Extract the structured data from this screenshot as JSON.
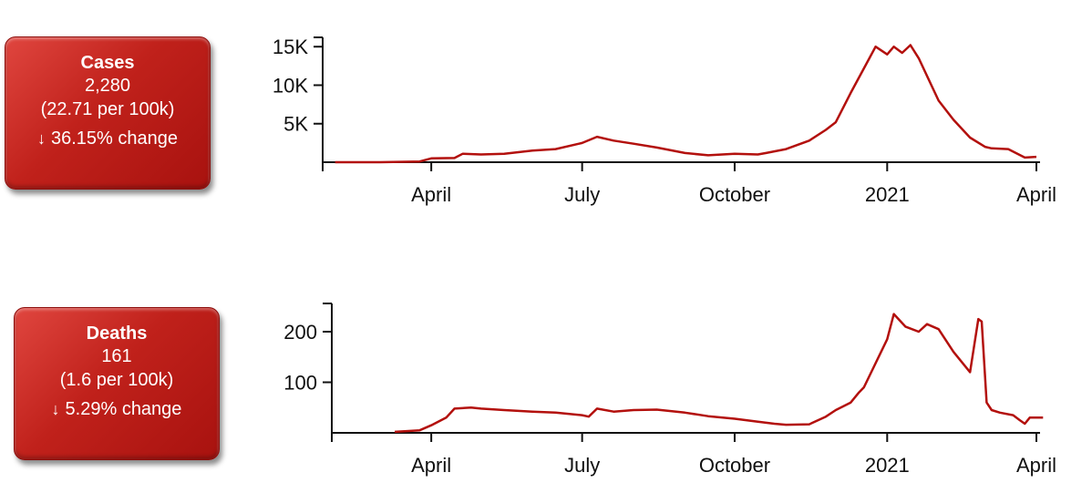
{
  "cards": {
    "cases": {
      "title": "Cases",
      "value": "2,280",
      "rate": "(22.71 per 100k)",
      "change": "36.15% change",
      "arrow": "↓"
    },
    "deaths": {
      "title": "Deaths",
      "value": "161",
      "rate": "(1.6 per 100k)",
      "change": "5.29% change",
      "arrow": "↓"
    }
  },
  "colors": {
    "line": "#b3100d",
    "card": "#c0211b"
  },
  "chart_data": [
    {
      "type": "line",
      "title": "",
      "xlabel": "",
      "ylabel": "",
      "x_tick_labels": [
        "April",
        "July",
        "October",
        "2021",
        "April"
      ],
      "x_ticks": [
        "2020-04-01",
        "2020-07-01",
        "2020-10-01",
        "2021-01-01",
        "2021-04-01"
      ],
      "xlim": [
        "2020-02-01",
        "2021-04-01"
      ],
      "y_ticks": [
        5000,
        10000,
        15000
      ],
      "y_tick_labels": [
        "5K",
        "10K",
        "15K"
      ],
      "ylim": [
        0,
        15500
      ],
      "grid": false,
      "series": [
        {
          "name": "",
          "x": [
            "2020-02-03",
            "2020-03-01",
            "2020-03-25",
            "2020-04-01",
            "2020-04-15",
            "2020-04-20",
            "2020-05-01",
            "2020-05-15",
            "2020-06-01",
            "2020-06-15",
            "2020-07-01",
            "2020-07-10",
            "2020-07-20",
            "2020-08-01",
            "2020-08-15",
            "2020-09-01",
            "2020-09-15",
            "2020-10-01",
            "2020-10-15",
            "2020-10-20",
            "2020-11-01",
            "2020-11-15",
            "2020-11-25",
            "2020-12-01",
            "2020-12-10",
            "2020-12-15",
            "2020-12-20",
            "2020-12-25",
            "2021-01-01",
            "2021-01-05",
            "2021-01-10",
            "2021-01-15",
            "2021-01-20",
            "2021-02-01",
            "2021-02-10",
            "2021-02-20",
            "2021-03-01",
            "2021-03-05",
            "2021-03-15",
            "2021-03-25",
            "2021-04-01"
          ],
          "y": [
            0,
            0,
            100,
            500,
            550,
            1100,
            1000,
            1100,
            1500,
            1700,
            2500,
            3300,
            2800,
            2400,
            1900,
            1200,
            900,
            1100,
            1000,
            1200,
            1700,
            2800,
            4200,
            5200,
            9000,
            11000,
            13000,
            15000,
            14000,
            15000,
            14200,
            15200,
            13500,
            8000,
            5500,
            3200,
            2000,
            1800,
            1700,
            600,
            700
          ]
        }
      ]
    },
    {
      "type": "line",
      "title": "",
      "xlabel": "",
      "ylabel": "",
      "x_tick_labels": [
        "April",
        "July",
        "October",
        "2021",
        "April"
      ],
      "x_ticks": [
        "2020-04-01",
        "2020-07-01",
        "2020-10-01",
        "2021-01-01",
        "2021-04-01"
      ],
      "xlim": [
        "2020-02-01",
        "2021-04-01"
      ],
      "y_ticks": [
        100,
        200
      ],
      "y_tick_labels": [
        "100",
        "200"
      ],
      "ylim": [
        0,
        245
      ],
      "grid": false,
      "series": [
        {
          "name": "",
          "x": [
            "2020-03-10",
            "2020-03-25",
            "2020-04-01",
            "2020-04-10",
            "2020-04-15",
            "2020-04-25",
            "2020-05-01",
            "2020-05-15",
            "2020-06-01",
            "2020-06-15",
            "2020-07-01",
            "2020-07-05",
            "2020-07-10",
            "2020-07-20",
            "2020-08-01",
            "2020-08-15",
            "2020-09-01",
            "2020-09-15",
            "2020-10-01",
            "2020-10-15",
            "2020-10-25",
            "2020-11-01",
            "2020-11-15",
            "2020-11-25",
            "2020-12-01",
            "2020-12-10",
            "2020-12-15",
            "2020-12-18",
            "2021-01-01",
            "2021-01-05",
            "2021-01-12",
            "2021-01-20",
            "2021-01-25",
            "2021-02-01",
            "2021-02-10",
            "2021-02-20",
            "2021-02-25",
            "2021-02-27",
            "2021-03-02",
            "2021-03-05",
            "2021-03-10",
            "2021-03-18",
            "2021-03-22",
            "2021-03-25",
            "2021-03-28",
            "2021-04-05"
          ],
          "y": [
            2,
            5,
            15,
            30,
            48,
            50,
            48,
            45,
            42,
            40,
            35,
            32,
            48,
            42,
            45,
            46,
            40,
            33,
            28,
            22,
            18,
            16,
            17,
            32,
            45,
            60,
            80,
            90,
            185,
            235,
            210,
            200,
            215,
            205,
            160,
            120,
            225,
            220,
            60,
            45,
            40,
            35,
            25,
            18,
            30,
            30
          ]
        }
      ]
    }
  ]
}
